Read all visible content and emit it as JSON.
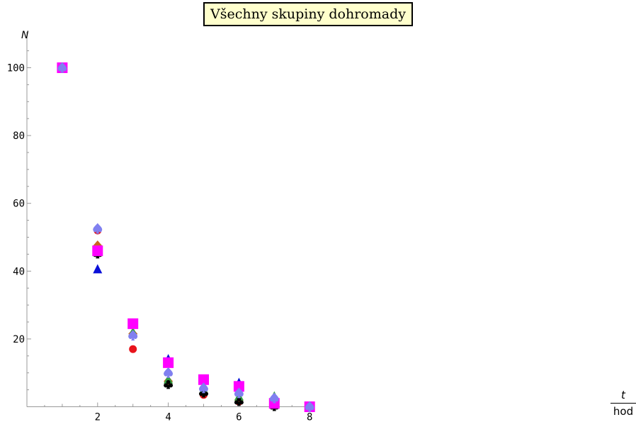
{
  "chart_data": {
    "type": "scatter",
    "title": "Všechny skupiny dohromady",
    "ylabel": "N",
    "xlabel_numerator": "t",
    "xlabel_denominator": "hod",
    "xlim": [
      0,
      8.1
    ],
    "ylim": [
      0,
      105
    ],
    "x_ticks": [
      2,
      4,
      6,
      8
    ],
    "y_ticks": [
      20,
      40,
      60,
      80,
      100
    ],
    "grid": false,
    "series": [
      {
        "marker": "circle",
        "color": "#e8141c",
        "x": [
          1,
          2,
          3,
          4,
          5,
          6,
          7,
          8
        ],
        "y": [
          100,
          52,
          17,
          7,
          3.5,
          1.5,
          0.5,
          0
        ]
      },
      {
        "marker": "triangle",
        "color": "#0a10d8",
        "x": [
          1,
          2,
          3,
          4,
          5,
          6,
          7,
          8
        ],
        "y": [
          100,
          40.5,
          24.5,
          14,
          5,
          7,
          2,
          0
        ]
      },
      {
        "marker": "diamond",
        "color": "#c8641e",
        "x": [
          1,
          2,
          3,
          4,
          5,
          6,
          7,
          8
        ],
        "y": [
          100,
          47.5,
          21.5,
          7.5,
          4,
          2,
          0.5,
          0
        ]
      },
      {
        "marker": "triangle",
        "color": "#30a040",
        "x": [
          1,
          2,
          3,
          4,
          5,
          6,
          7,
          8
        ],
        "y": [
          100,
          46,
          22,
          8,
          5,
          3,
          3,
          0
        ]
      },
      {
        "marker": "club",
        "color": "#000000",
        "x": [
          1,
          2,
          3,
          4,
          5,
          6,
          7,
          8
        ],
        "y": [
          100,
          45,
          24.5,
          6.5,
          4,
          1.5,
          0,
          0
        ]
      },
      {
        "marker": "square",
        "color": "#ff00ff",
        "x": [
          1,
          2,
          3,
          4,
          5,
          6,
          7,
          8
        ],
        "y": [
          100,
          46,
          24.5,
          13,
          8,
          6,
          1,
          0
        ]
      },
      {
        "marker": "spade",
        "color": "#8080f0",
        "x": [
          1,
          2,
          3,
          4,
          5,
          6,
          7,
          8
        ],
        "y": [
          100,
          52.5,
          21,
          10,
          5.5,
          4,
          2.5,
          0
        ]
      }
    ]
  }
}
